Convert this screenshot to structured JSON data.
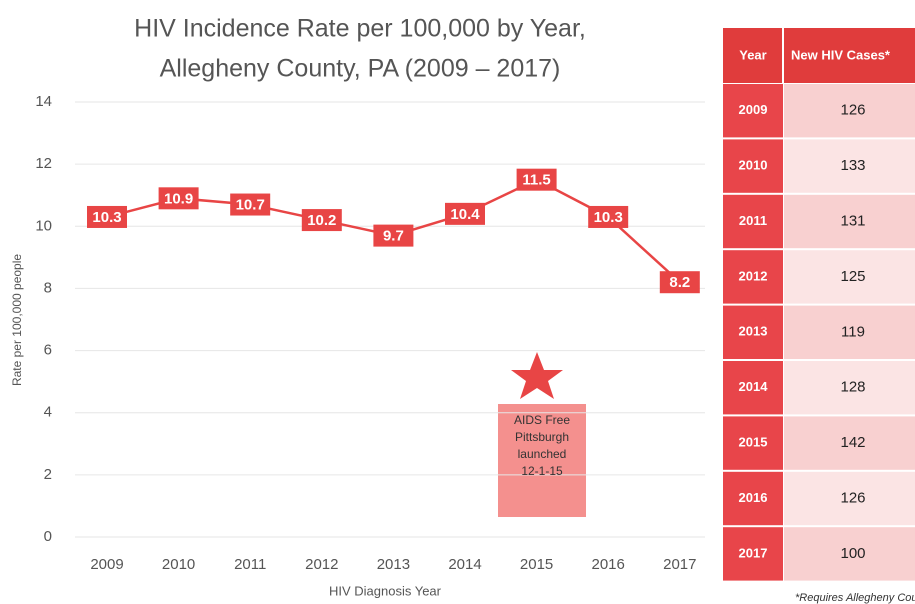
{
  "chart_data": {
    "type": "line",
    "title": [
      "HIV Incidence Rate per 100,000 by Year,",
      "Allegheny County, PA (2009 – 2017)"
    ],
    "categories": [
      "2009",
      "2010",
      "2011",
      "2012",
      "2013",
      "2014",
      "2015",
      "2016",
      "2017"
    ],
    "values": [
      10.3,
      10.9,
      10.7,
      10.2,
      9.7,
      10.4,
      11.5,
      10.3,
      8.2
    ],
    "color": "#e84545",
    "ylim": [
      0,
      14
    ],
    "yticks": [
      0,
      2,
      4,
      6,
      8,
      10,
      12,
      14
    ],
    "grid": true,
    "ylabel": "Rate per 100,000 people",
    "xlabel": "HIV Diagnosis Year",
    "annotation": [
      "AIDS Free",
      "Pittsburgh",
      "launched",
      "12-1-15"
    ]
  },
  "table": {
    "header": [
      "Year",
      "New HIV Cases*"
    ],
    "rows": [
      [
        2009,
        126
      ],
      [
        2010,
        133
      ],
      [
        2011,
        131
      ],
      [
        2012,
        125
      ],
      [
        2013,
        119
      ],
      [
        2014,
        128
      ],
      [
        2015,
        142
      ],
      [
        2016,
        126
      ],
      [
        2017,
        100
      ]
    ],
    "footnote": "*Requires Allegheny County"
  }
}
